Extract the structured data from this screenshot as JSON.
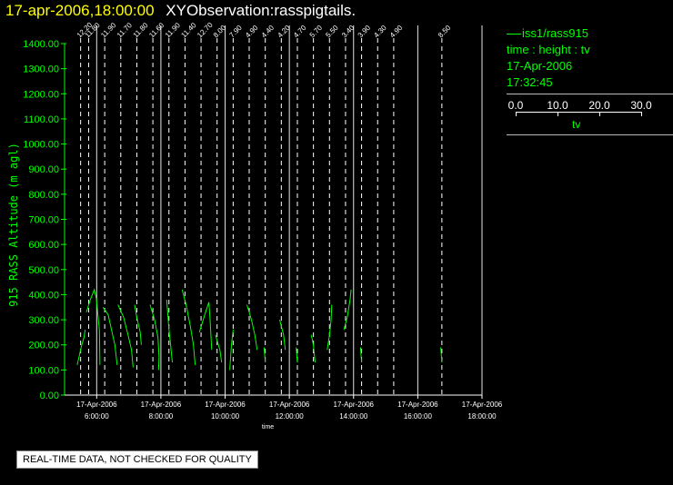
{
  "header": {
    "timestamp": "17-apr-2006,18:00:00",
    "observation": "XYObservation:rasspigtails."
  },
  "legend": {
    "series_label": "iss1/rass915",
    "variables": "time : height : tv",
    "date": "17-Apr-2006",
    "time": "17:32:45",
    "scale_ticks": [
      "0.0",
      "10.0",
      "20.0",
      "30.0"
    ],
    "scale_variable": "tv"
  },
  "disclaimer": "REAL-TIME DATA, NOT CHECKED FOR QUALITY",
  "chart_data": {
    "type": "line",
    "ylabel": "915 RASS Altitude (m agl)",
    "xlabel": "time",
    "ylim": [
      0,
      1400
    ],
    "yticks": [
      "0.00",
      "100.00",
      "200.00",
      "300.00",
      "400.00",
      "500.00",
      "600.00",
      "700.00",
      "800.00",
      "900.00",
      "1000.00",
      "1100.00",
      "1200.00",
      "1300.00",
      "1400.00"
    ],
    "xlim_hours": [
      5,
      18
    ],
    "xticks": [
      {
        "date": "17-Apr-2006",
        "time": "6:00:00",
        "hour": 6
      },
      {
        "date": "17-Apr-2006",
        "time": "8:00:00",
        "hour": 8
      },
      {
        "date": "17-Apr-2006",
        "time": "10:00:00",
        "hour": 10
      },
      {
        "date": "17-Apr-2006",
        "time": "12:00:00",
        "hour": 12
      },
      {
        "date": "17-Apr-2006",
        "time": "14:00:00",
        "hour": 14
      },
      {
        "date": "17-Apr-2006",
        "time": "16:00:00",
        "hour": 16
      },
      {
        "date": "17-Apr-2006",
        "time": "18:00:00",
        "hour": 18
      }
    ],
    "grid": "vertical solid at hour ticks",
    "pigtails": [
      {
        "hour": 5.5,
        "label": "12.20",
        "points": [
          [
            -0.6,
            120
          ],
          [
            0.2,
            200
          ],
          [
            0.6,
            230
          ],
          [
            0.8,
            260
          ]
        ]
      },
      {
        "hour": 5.75,
        "label": "11.80",
        "points": [
          [
            -0.4,
            330
          ],
          [
            0.3,
            380
          ],
          [
            1.0,
            420
          ],
          [
            1.4,
            380
          ],
          [
            1.6,
            330
          ],
          [
            1.9,
            260
          ],
          [
            2.0,
            120
          ]
        ]
      },
      {
        "hour": 6.25,
        "label": "11.90",
        "points": [
          [
            -0.3,
            350
          ],
          [
            0.6,
            320
          ],
          [
            1.2,
            260
          ],
          [
            1.8,
            200
          ],
          [
            2.2,
            120
          ]
        ]
      },
      {
        "hour": 6.75,
        "label": "11.70",
        "points": [
          [
            -0.5,
            360
          ],
          [
            0.5,
            310
          ],
          [
            1.3,
            240
          ],
          [
            1.9,
            180
          ],
          [
            2.2,
            110
          ]
        ]
      },
      {
        "hour": 7.25,
        "label": "11.80",
        "points": [
          [
            -0.4,
            360
          ],
          [
            0.0,
            310
          ],
          [
            0.6,
            250
          ],
          [
            0.8,
            200
          ]
        ]
      },
      {
        "hour": 7.75,
        "label": "11.60",
        "points": [
          [
            -0.5,
            360
          ],
          [
            0.3,
            300
          ],
          [
            0.9,
            230
          ],
          [
            1.1,
            150
          ],
          [
            1.0,
            100
          ]
        ]
      },
      {
        "hour": 8.25,
        "label": "11.90",
        "points": [
          [
            -0.4,
            380
          ],
          [
            0.0,
            260
          ],
          [
            0.3,
            200
          ],
          [
            0.6,
            130
          ]
        ]
      },
      {
        "hour": 8.75,
        "label": "11.40",
        "points": [
          [
            -0.5,
            420
          ],
          [
            0.2,
            360
          ],
          [
            0.9,
            280
          ],
          [
            1.5,
            200
          ],
          [
            1.8,
            120
          ]
        ]
      },
      {
        "hour": 9.25,
        "label": "12.70",
        "points": [
          [
            -0.3,
            250
          ],
          [
            0.8,
            330
          ],
          [
            1.4,
            370
          ],
          [
            1.6,
            300
          ],
          [
            1.9,
            180
          ]
        ]
      },
      {
        "hour": 9.75,
        "label": "8.00",
        "points": [
          [
            -0.3,
            240
          ],
          [
            0.5,
            180
          ],
          [
            0.8,
            130
          ]
        ]
      },
      {
        "hour": 10.25,
        "label": "7.90",
        "points": [
          [
            -0.6,
            100
          ],
          [
            -0.3,
            200
          ],
          [
            0.0,
            260
          ]
        ]
      },
      {
        "hour": 10.75,
        "label": "4.90",
        "points": [
          [
            -0.4,
            360
          ],
          [
            0.4,
            300
          ],
          [
            1.0,
            240
          ],
          [
            1.4,
            180
          ]
        ]
      },
      {
        "hour": 11.25,
        "label": "4.40",
        "points": [
          [
            -0.2,
            190
          ],
          [
            0.0,
            130
          ]
        ]
      },
      {
        "hour": 11.75,
        "label": "4.20",
        "points": [
          [
            -0.3,
            300
          ],
          [
            0.4,
            240
          ],
          [
            0.7,
            180
          ]
        ]
      },
      {
        "hour": 12.25,
        "label": "4.70",
        "points": [
          [
            -0.2,
            190
          ],
          [
            0.0,
            130
          ]
        ]
      },
      {
        "hour": 12.75,
        "label": "5.70",
        "points": [
          [
            -0.4,
            240
          ],
          [
            0.0,
            200
          ],
          [
            0.3,
            130
          ]
        ]
      },
      {
        "hour": 13.25,
        "label": "5.50",
        "points": [
          [
            -0.4,
            180
          ],
          [
            0.0,
            240
          ],
          [
            0.3,
            300
          ],
          [
            0.4,
            360
          ]
        ]
      },
      {
        "hour": 13.75,
        "label": "3.40",
        "points": [
          [
            -0.3,
            260
          ],
          [
            0.3,
            310
          ],
          [
            0.8,
            380
          ],
          [
            1.0,
            420
          ]
        ]
      },
      {
        "hour": 14.25,
        "label": "3.90",
        "points": [
          [
            -0.2,
            190
          ],
          [
            0.0,
            130
          ]
        ]
      },
      {
        "hour": 14.75,
        "label": "4.30",
        "points": []
      },
      {
        "hour": 15.25,
        "label": "4.90",
        "points": []
      },
      {
        "hour": 16.75,
        "label": "8.50",
        "points": [
          [
            -0.2,
            190
          ],
          [
            0.0,
            130
          ]
        ]
      }
    ]
  }
}
